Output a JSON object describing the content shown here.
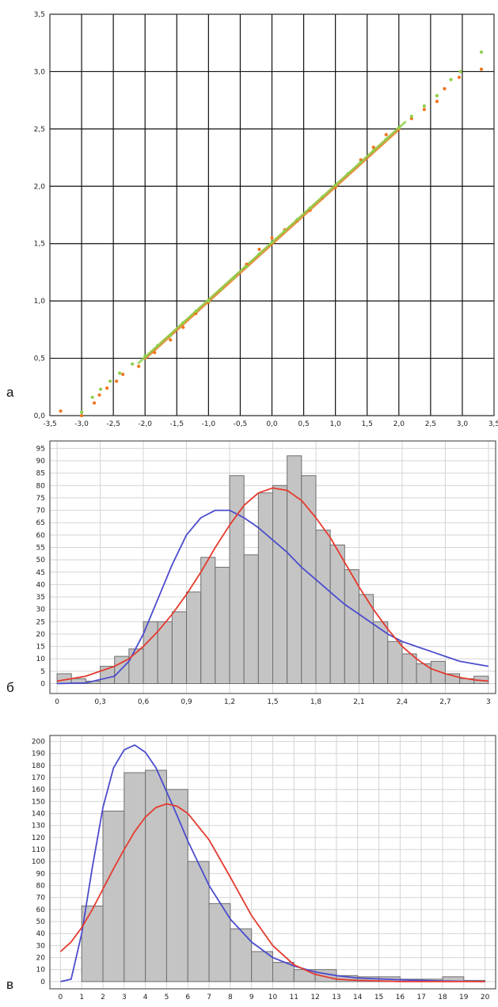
{
  "panel_labels": [
    "а",
    "б",
    "в"
  ],
  "colors": {
    "grid_dark": "#111111",
    "grid_light": "#d4d4d4",
    "orange_points": "#f0751e",
    "green_points": "#8cd04a",
    "bar_fill": "#c4c4c4",
    "bar_edge": "#6e6e6e",
    "blue_curve": "#4c4ccd",
    "red_curve": "#e53a2e"
  },
  "chart_data": [
    {
      "type": "scatter",
      "panel": "а",
      "xlim": [
        -3.5,
        3.5
      ],
      "ylim": [
        0,
        3.5
      ],
      "grid": true,
      "x_ticks": [
        -3.5,
        -3.0,
        -2.5,
        -2.0,
        -1.5,
        -1.0,
        -0.5,
        0.0,
        0.5,
        1.0,
        1.5,
        2.0,
        2.5,
        3.0,
        3.5
      ],
      "x_tick_labels": [
        "-3,5",
        "-3,0",
        "-2,5",
        "-2,0",
        "-1,5",
        "-1,0",
        "-0,5",
        "0,0",
        "0,5",
        "1,0",
        "1,5",
        "2,0",
        "2,5",
        "3,0",
        "3,5"
      ],
      "y_ticks": [
        0,
        0.5,
        1.0,
        1.5,
        2.0,
        2.5,
        3.0,
        3.5
      ],
      "y_tick_labels": [
        "0,0",
        "0,5",
        "1,0",
        "1,5",
        "2,0",
        "2,5",
        "3,0",
        "3,5"
      ],
      "series": [
        {
          "color": "orange",
          "x": [
            -3.33,
            -3.0,
            -2.8,
            -2.72,
            -2.6,
            -2.45,
            -2.35,
            -2.1,
            -1.85,
            -1.6,
            -1.4,
            -1.2,
            -1.0,
            -0.8,
            -0.6,
            -0.4,
            -0.2,
            0.0,
            0.2,
            0.4,
            0.6,
            0.8,
            1.0,
            1.2,
            1.4,
            1.6,
            1.8,
            2.0,
            2.2,
            2.4,
            2.6,
            2.72,
            2.95,
            3.3
          ],
          "y": [
            0.04,
            0.0,
            0.11,
            0.18,
            0.24,
            0.3,
            0.36,
            0.43,
            0.55,
            0.66,
            0.77,
            0.89,
            0.99,
            1.1,
            1.2,
            1.32,
            1.45,
            1.55,
            1.62,
            1.7,
            1.79,
            1.9,
            1.99,
            2.11,
            2.23,
            2.34,
            2.45,
            2.5,
            2.59,
            2.67,
            2.74,
            2.85,
            2.95,
            3.02
          ]
        },
        {
          "color": "green",
          "x": [
            -3.0,
            -2.83,
            -2.7,
            -2.55,
            -2.4,
            -2.2,
            -2.0,
            -1.8,
            -1.6,
            -1.4,
            -1.2,
            -1.0,
            -0.8,
            -0.6,
            -0.4,
            -0.2,
            0.0,
            0.2,
            0.4,
            0.6,
            0.8,
            1.0,
            1.2,
            1.4,
            1.6,
            1.8,
            2.0,
            2.2,
            2.4,
            2.6,
            2.82,
            2.97,
            3.3
          ],
          "y": [
            0.03,
            0.16,
            0.23,
            0.3,
            0.37,
            0.45,
            0.52,
            0.61,
            0.7,
            0.81,
            0.91,
            1.0,
            1.1,
            1.2,
            1.3,
            1.41,
            1.51,
            1.61,
            1.71,
            1.81,
            1.91,
            2.01,
            2.11,
            2.21,
            2.31,
            2.41,
            2.51,
            2.61,
            2.7,
            2.79,
            2.93,
            3.0,
            3.17
          ]
        }
      ]
    },
    {
      "type": "bar",
      "panel": "б",
      "bar_width": 0.1,
      "xlim": [
        -0.05,
        3.05
      ],
      "ylim": [
        -4,
        98
      ],
      "grid": true,
      "x_ticks": [
        0,
        0.3,
        0.6,
        0.9,
        1.2,
        1.5,
        1.8,
        2.1,
        2.4,
        2.7,
        3.0
      ],
      "x_tick_labels": [
        "0",
        "0,3",
        "0,6",
        "0,9",
        "1,2",
        "1,5",
        "1,8",
        "2,1",
        "2,4",
        "2,7",
        "3"
      ],
      "y_ticks": [
        0,
        5,
        10,
        15,
        20,
        25,
        30,
        35,
        40,
        45,
        50,
        55,
        60,
        65,
        70,
        75,
        80,
        85,
        90,
        95
      ],
      "y_tick_labels": [
        "0",
        "5",
        "10",
        "15",
        "20",
        "25",
        "30",
        "35",
        "40",
        "45",
        "50",
        "55",
        "60",
        "65",
        "70",
        "75",
        "80",
        "85",
        "90",
        "95"
      ],
      "bins_left": [
        0.0,
        0.1,
        0.2,
        0.3,
        0.4,
        0.5,
        0.6,
        0.7,
        0.8,
        0.9,
        1.0,
        1.1,
        1.2,
        1.3,
        1.4,
        1.5,
        1.6,
        1.7,
        1.8,
        1.9,
        2.0,
        2.1,
        2.2,
        2.3,
        2.4,
        2.5,
        2.6,
        2.7,
        2.8,
        2.9
      ],
      "values": [
        4,
        2,
        1,
        7,
        11,
        14,
        25,
        25,
        29,
        37,
        51,
        47,
        84,
        52,
        77,
        80,
        92,
        84,
        62,
        56,
        46,
        36,
        25,
        17,
        12,
        8,
        9,
        4,
        2,
        3
      ],
      "curves": [
        {
          "color": "blue",
          "x": [
            0.0,
            0.2,
            0.4,
            0.5,
            0.6,
            0.7,
            0.8,
            0.9,
            1.0,
            1.1,
            1.2,
            1.3,
            1.4,
            1.5,
            1.6,
            1.7,
            1.8,
            1.9,
            2.0,
            2.1,
            2.2,
            2.3,
            2.4,
            2.5,
            2.6,
            2.7,
            2.8,
            2.9,
            3.0
          ],
          "y": [
            0,
            0.3,
            3,
            9,
            20,
            34,
            48,
            60,
            67,
            70,
            70,
            67,
            63,
            58,
            53,
            47,
            42,
            37,
            32,
            28,
            24,
            20,
            17,
            15,
            13,
            11,
            9,
            8,
            7
          ]
        },
        {
          "color": "red",
          "x": [
            0.0,
            0.2,
            0.4,
            0.5,
            0.6,
            0.7,
            0.8,
            0.9,
            1.0,
            1.1,
            1.2,
            1.3,
            1.4,
            1.5,
            1.6,
            1.7,
            1.8,
            1.9,
            2.0,
            2.1,
            2.2,
            2.3,
            2.4,
            2.5,
            2.6,
            2.7,
            2.8,
            2.9,
            3.0
          ],
          "y": [
            1,
            3,
            7,
            10,
            15,
            21,
            28,
            36,
            45,
            55,
            64,
            72,
            77,
            79,
            78,
            74,
            67,
            59,
            49,
            39,
            30,
            22,
            15,
            10,
            6,
            4,
            2.5,
            1.5,
            1
          ]
        }
      ]
    },
    {
      "type": "bar",
      "panel": "в",
      "bar_width": 1,
      "xlim": [
        -0.5,
        20.5
      ],
      "ylim": [
        -6,
        205
      ],
      "grid": true,
      "x_ticks": [
        0,
        1,
        2,
        3,
        4,
        5,
        6,
        7,
        8,
        9,
        10,
        11,
        12,
        13,
        14,
        15,
        16,
        17,
        18,
        19,
        20
      ],
      "x_tick_labels": [
        "0",
        "1",
        "2",
        "3",
        "4",
        "5",
        "6",
        "7",
        "8",
        "9",
        "10",
        "11",
        "12",
        "13",
        "14",
        "15",
        "16",
        "17",
        "18",
        "19",
        "20"
      ],
      "y_ticks": [
        0,
        10,
        20,
        30,
        40,
        50,
        60,
        70,
        80,
        90,
        100,
        110,
        120,
        130,
        140,
        150,
        160,
        170,
        180,
        190,
        200
      ],
      "y_tick_labels": [
        "0",
        "10",
        "20",
        "30",
        "40",
        "50",
        "60",
        "70",
        "80",
        "90",
        "100",
        "110",
        "120",
        "130",
        "140",
        "150",
        "160",
        "170",
        "180",
        "190",
        "200"
      ],
      "bins_left": [
        1,
        2,
        3,
        4,
        5,
        6,
        7,
        8,
        9,
        10,
        11,
        12,
        13,
        14,
        15,
        16,
        17,
        18,
        19
      ],
      "values": [
        63,
        142,
        174,
        176,
        160,
        100,
        65,
        44,
        25,
        16,
        10,
        10,
        5,
        4,
        4,
        2,
        2,
        4,
        1
      ],
      "curves": [
        {
          "color": "blue",
          "x": [
            0,
            0.5,
            1.0,
            1.5,
            2.0,
            2.5,
            3.0,
            3.5,
            4.0,
            4.5,
            5.0,
            5.5,
            6.0,
            7.0,
            8.0,
            9.0,
            10.0,
            11.0,
            12.0,
            13.0,
            14.0,
            16.0,
            18.0,
            20.0
          ],
          "y": [
            0,
            2,
            40,
            95,
            145,
            178,
            193,
            197,
            191,
            178,
            158,
            138,
            117,
            80,
            52,
            33,
            20,
            13,
            8,
            5,
            3,
            1.5,
            0.5,
            0
          ]
        },
        {
          "color": "red",
          "x": [
            0,
            0.5,
            1.0,
            1.5,
            2.0,
            2.5,
            3.0,
            3.5,
            4.0,
            4.5,
            5.0,
            5.5,
            6.0,
            7.0,
            8.0,
            9.0,
            10.0,
            11.0,
            12.0,
            13.0,
            14.0,
            16.0,
            18.0,
            20.0
          ],
          "y": [
            25,
            33,
            45,
            60,
            77,
            94,
            110,
            125,
            137,
            145,
            148,
            146,
            140,
            118,
            87,
            55,
            30,
            14,
            6,
            2,
            1,
            0,
            0,
            0
          ]
        }
      ]
    }
  ]
}
